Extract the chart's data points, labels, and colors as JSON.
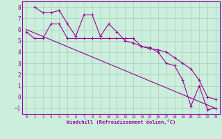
{
  "xlabel": "Windchill (Refroidissement éolien,°C)",
  "bg_color": "#cceedd",
  "line_color": "#990099",
  "grid_color": "#aaccbb",
  "xlim": [
    -0.5,
    23.5
  ],
  "ylim": [
    -1.5,
    8.5
  ],
  "yticks": [
    -1,
    0,
    1,
    2,
    3,
    4,
    5,
    6,
    7,
    8
  ],
  "xticks": [
    0,
    1,
    2,
    3,
    4,
    5,
    6,
    7,
    8,
    9,
    10,
    11,
    12,
    13,
    14,
    15,
    16,
    17,
    18,
    19,
    20,
    21,
    22,
    23
  ],
  "series1_x": [
    0,
    1,
    2,
    3,
    4,
    5,
    6,
    7,
    8,
    9,
    10,
    11,
    12,
    13,
    14,
    15,
    16,
    17,
    18,
    19,
    20,
    21,
    22,
    23
  ],
  "series1_y": [
    5.8,
    5.2,
    5.2,
    6.5,
    6.5,
    5.2,
    5.2,
    5.2,
    5.2,
    5.2,
    5.2,
    5.2,
    5.2,
    5.2,
    4.5,
    4.3,
    4.2,
    4.0,
    3.5,
    3.0,
    2.5,
    1.5,
    0.0,
    -0.2
  ],
  "series2_x": [
    1,
    2,
    3,
    4,
    5,
    6,
    7,
    8,
    9,
    10,
    11,
    12,
    13,
    14,
    15,
    16,
    17,
    18,
    19,
    20,
    21,
    22,
    23
  ],
  "series2_y": [
    8.0,
    7.5,
    7.5,
    7.7,
    6.5,
    5.4,
    7.3,
    7.3,
    5.4,
    6.5,
    5.8,
    5.0,
    4.8,
    4.5,
    4.4,
    4.0,
    3.0,
    2.8,
    1.5,
    -0.8,
    1.0,
    -1.1,
    -1.0
  ],
  "series3_x": [
    0,
    23
  ],
  "series3_y": [
    6.0,
    -1.0
  ],
  "marker": "+",
  "markersize": 3,
  "linewidth": 0.8
}
